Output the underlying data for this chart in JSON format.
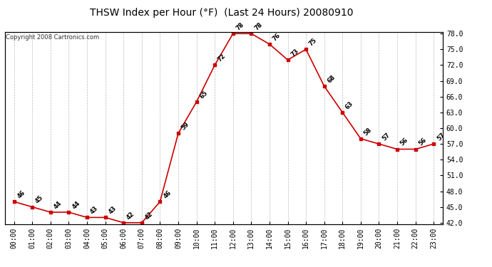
{
  "title": "THSW Index per Hour (°F)  (Last 24 Hours) 20080910",
  "copyright": "Copyright 2008 Cartronics.com",
  "hours": [
    "00:00",
    "01:00",
    "02:00",
    "03:00",
    "04:00",
    "05:00",
    "06:00",
    "07:00",
    "08:00",
    "09:00",
    "10:00",
    "11:00",
    "12:00",
    "13:00",
    "14:00",
    "15:00",
    "16:00",
    "17:00",
    "18:00",
    "19:00",
    "20:00",
    "21:00",
    "22:00",
    "23:00"
  ],
  "values": [
    46,
    45,
    44,
    44,
    43,
    43,
    42,
    42,
    46,
    59,
    65,
    72,
    78,
    78,
    76,
    73,
    75,
    68,
    63,
    58,
    57,
    56,
    56,
    57
  ],
  "ylim_min": 42.0,
  "ylim_max": 78.0,
  "ytick_step": 3.0,
  "yticks": [
    42.0,
    45.0,
    48.0,
    51.0,
    54.0,
    57.0,
    60.0,
    63.0,
    66.0,
    69.0,
    72.0,
    75.0,
    78.0
  ],
  "line_color": "#cc0000",
  "marker_color": "#cc0000",
  "bg_color": "#ffffff",
  "grid_color": "#aaaaaa",
  "label_color": "#000000",
  "fig_bg": "#ffffff",
  "title_fontsize": 10,
  "tick_fontsize": 7,
  "annot_fontsize": 6,
  "copyright_fontsize": 6
}
